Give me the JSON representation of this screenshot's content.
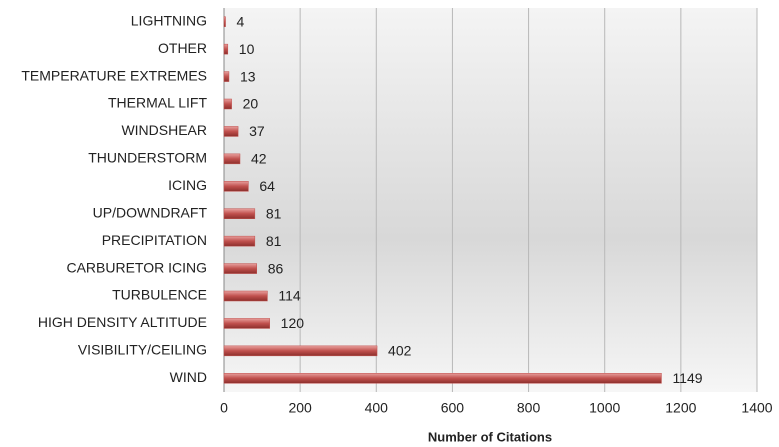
{
  "chart_data": {
    "type": "bar",
    "orientation": "horizontal",
    "categories": [
      "LIGHTNING",
      "OTHER",
      "TEMPERATURE EXTREMES",
      "THERMAL LIFT",
      "WINDSHEAR",
      "THUNDERSTORM",
      "ICING",
      "UP/DOWNDRAFT",
      "PRECIPITATION",
      "CARBURETOR ICING",
      "TURBULENCE",
      "HIGH DENSITY ALTITUDE",
      "VISIBILITY/CEILING",
      "WIND"
    ],
    "values": [
      4,
      10,
      13,
      20,
      37,
      42,
      64,
      81,
      81,
      86,
      114,
      120,
      402,
      1149
    ],
    "color": "#c0504d",
    "xlabel": "Number of Citations",
    "xlim": [
      0,
      1400
    ],
    "xticks": [
      0,
      200,
      400,
      600,
      800,
      1000,
      1200,
      1400
    ],
    "grid": true
  }
}
